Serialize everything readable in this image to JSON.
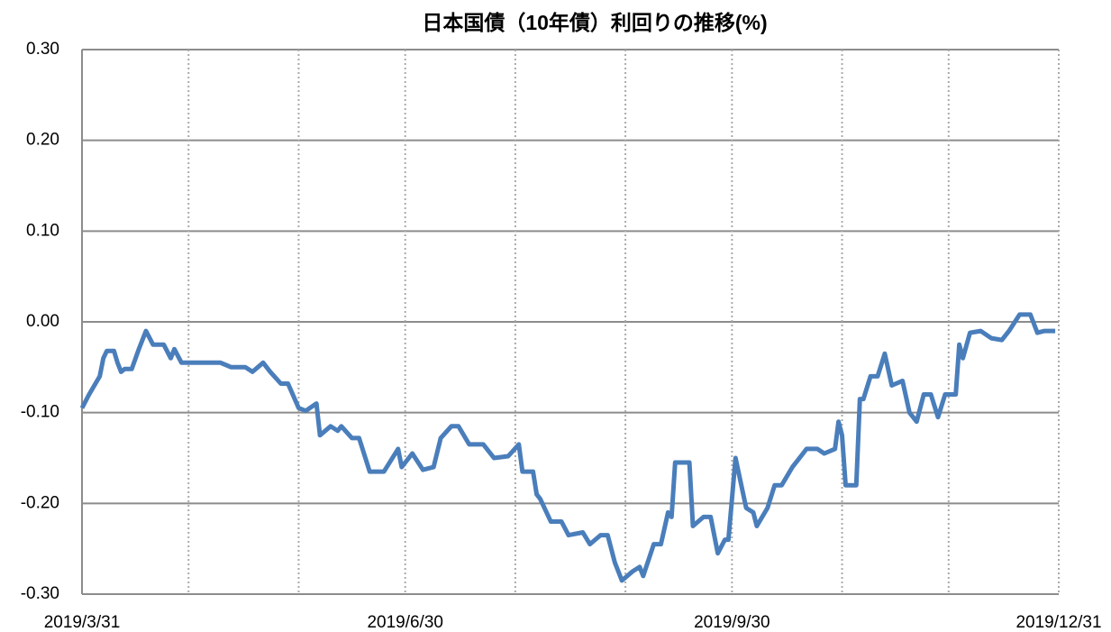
{
  "chart_data": {
    "type": "line",
    "title": "日本国債（10年債）利回りの推移(%)",
    "x": [
      "2019-03-31",
      "2019-04-02",
      "2019-04-05",
      "2019-04-06",
      "2019-04-07",
      "2019-04-09",
      "2019-04-10",
      "2019-04-11",
      "2019-04-12",
      "2019-04-14",
      "2019-04-16",
      "2019-04-18",
      "2019-04-20",
      "2019-04-23",
      "2019-04-25",
      "2019-04-26",
      "2019-04-28",
      "2019-05-05",
      "2019-05-09",
      "2019-05-12",
      "2019-05-16",
      "2019-05-18",
      "2019-05-21",
      "2019-05-23",
      "2019-05-26",
      "2019-05-28",
      "2019-05-31",
      "2019-06-02",
      "2019-06-05",
      "2019-06-06",
      "2019-06-09",
      "2019-06-11",
      "2019-06-12",
      "2019-06-15",
      "2019-06-17",
      "2019-06-20",
      "2019-06-24",
      "2019-06-28",
      "2019-06-29",
      "2019-07-02",
      "2019-07-05",
      "2019-07-08",
      "2019-07-10",
      "2019-07-13",
      "2019-07-15",
      "2019-07-18",
      "2019-07-22",
      "2019-07-25",
      "2019-07-29",
      "2019-08-01",
      "2019-08-02",
      "2019-08-05",
      "2019-08-06",
      "2019-08-07",
      "2019-08-10",
      "2019-08-13",
      "2019-08-15",
      "2019-08-19",
      "2019-08-21",
      "2019-08-24",
      "2019-08-26",
      "2019-08-28",
      "2019-08-30",
      "2019-09-02",
      "2019-09-04",
      "2019-09-05",
      "2019-09-08",
      "2019-09-10",
      "2019-09-12",
      "2019-09-13",
      "2019-09-14",
      "2019-09-18",
      "2019-09-19",
      "2019-09-22",
      "2019-09-24",
      "2019-09-26",
      "2019-09-28",
      "2019-09-29",
      "2019-10-01",
      "2019-10-04",
      "2019-10-06",
      "2019-10-07",
      "2019-10-10",
      "2019-10-12",
      "2019-10-14",
      "2019-10-17",
      "2019-10-20",
      "2019-10-21",
      "2019-10-24",
      "2019-10-26",
      "2019-10-29",
      "2019-10-30",
      "2019-10-31",
      "2019-11-01",
      "2019-11-04",
      "2019-11-05",
      "2019-11-06",
      "2019-11-08",
      "2019-11-10",
      "2019-11-12",
      "2019-11-14",
      "2019-11-17",
      "2019-11-19",
      "2019-11-21",
      "2019-11-23",
      "2019-11-25",
      "2019-11-27",
      "2019-11-29",
      "2019-12-02",
      "2019-12-03",
      "2019-12-04",
      "2019-12-06",
      "2019-12-09",
      "2019-12-12",
      "2019-12-15",
      "2019-12-17",
      "2019-12-20",
      "2019-12-23",
      "2019-12-25",
      "2019-12-27",
      "2019-12-30"
    ],
    "series": [
      {
        "color": "#4a7ebb",
        "values": [
          -0.095,
          -0.08,
          -0.06,
          -0.04,
          -0.032,
          -0.032,
          -0.045,
          -0.055,
          -0.052,
          -0.052,
          -0.03,
          -0.01,
          -0.025,
          -0.025,
          -0.04,
          -0.03,
          -0.045,
          -0.045,
          -0.045,
          -0.05,
          -0.05,
          -0.055,
          -0.045,
          -0.055,
          -0.068,
          -0.068,
          -0.095,
          -0.098,
          -0.09,
          -0.125,
          -0.115,
          -0.12,
          -0.115,
          -0.128,
          -0.128,
          -0.165,
          -0.165,
          -0.14,
          -0.16,
          -0.145,
          -0.163,
          -0.16,
          -0.128,
          -0.115,
          -0.115,
          -0.135,
          -0.135,
          -0.15,
          -0.148,
          -0.135,
          -0.165,
          -0.165,
          -0.19,
          -0.195,
          -0.22,
          -0.22,
          -0.235,
          -0.232,
          -0.245,
          -0.235,
          -0.235,
          -0.265,
          -0.285,
          -0.275,
          -0.27,
          -0.28,
          -0.245,
          -0.245,
          -0.21,
          -0.215,
          -0.155,
          -0.155,
          -0.225,
          -0.215,
          -0.215,
          -0.255,
          -0.24,
          -0.24,
          -0.15,
          -0.205,
          -0.21,
          -0.225,
          -0.205,
          -0.18,
          -0.18,
          -0.16,
          -0.145,
          -0.14,
          -0.14,
          -0.145,
          -0.14,
          -0.11,
          -0.125,
          -0.18,
          -0.18,
          -0.085,
          -0.085,
          -0.06,
          -0.06,
          -0.035,
          -0.07,
          -0.065,
          -0.1,
          -0.11,
          -0.08,
          -0.08,
          -0.105,
          -0.08,
          -0.08,
          -0.025,
          -0.04,
          -0.012,
          -0.01,
          -0.018,
          -0.02,
          -0.01,
          0.008,
          0.008,
          -0.012,
          -0.01,
          -0.01
        ]
      }
    ],
    "xlim": [
      "2019-03-31",
      "2019-12-31"
    ],
    "xticks": [
      {
        "value": "2019-03-31",
        "label": "2019/3/31"
      },
      {
        "value": "2019-04-30"
      },
      {
        "value": "2019-05-31"
      },
      {
        "value": "2019-06-30",
        "label": "2019/6/30"
      },
      {
        "value": "2019-07-31"
      },
      {
        "value": "2019-08-31"
      },
      {
        "value": "2019-09-30",
        "label": "2019/9/30"
      },
      {
        "value": "2019-10-31"
      },
      {
        "value": "2019-11-30"
      },
      {
        "value": "2019-12-31",
        "label": "2019/12/31"
      }
    ],
    "ylim": [
      -0.3,
      0.3
    ],
    "yticks": [
      {
        "value": -0.3,
        "label": "-0.30"
      },
      {
        "value": -0.2,
        "label": "-0.20"
      },
      {
        "value": -0.1,
        "label": "-0.10"
      },
      {
        "value": 0,
        "label": "0.00"
      },
      {
        "value": 0.1,
        "label": "0.10"
      },
      {
        "value": 0.2,
        "label": "0.20"
      },
      {
        "value": 0.3,
        "label": "0.30"
      }
    ],
    "grid": true
  }
}
